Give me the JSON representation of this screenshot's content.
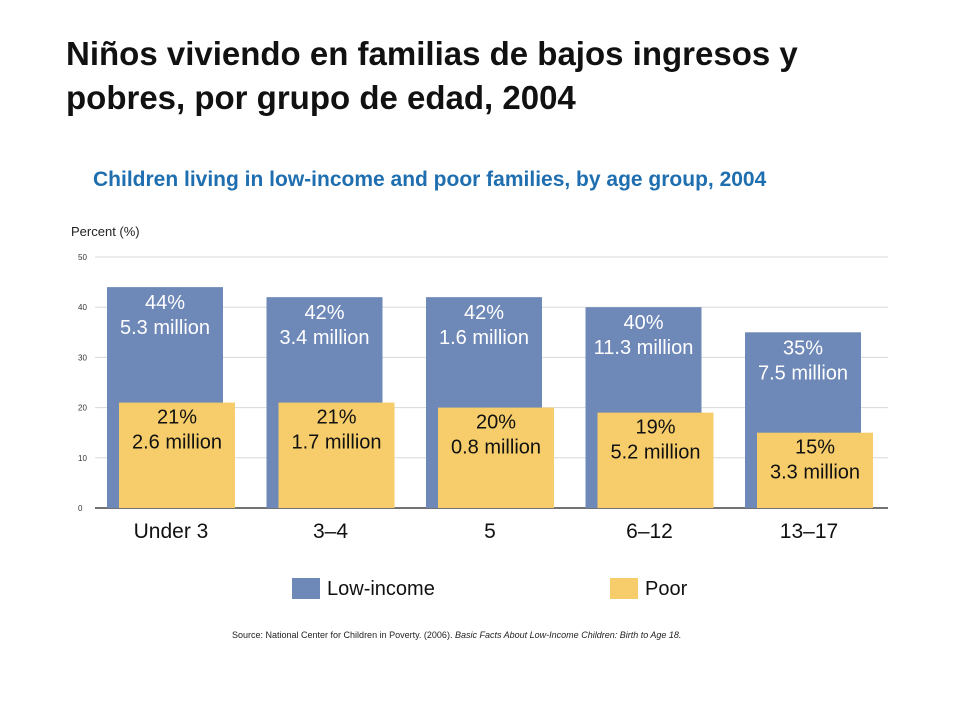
{
  "slide": {
    "title": "Niños viviendo en familias de bajos ingresos y pobres, por grupo de edad, 2004"
  },
  "source": {
    "prefix": "Source: National Center for Children in Poverty. (2006).",
    "italic": "Basic Facts About Low-Income Children: Birth to Age 18."
  },
  "colors": {
    "low_income": "#6e88b8",
    "poor": "#f6cd6a",
    "title": "#1f6fb0",
    "grid": "#d8d8d8"
  },
  "chart_data": {
    "type": "bar",
    "title": "Children living in low-income and poor families, by age group, 2004",
    "ylabel": "Percent (%)",
    "ylim": [
      0,
      50
    ],
    "yticks": [
      0,
      10,
      20,
      30,
      40,
      50
    ],
    "grid": true,
    "legend_position": "bottom",
    "categories": [
      "Under 3",
      "3–4",
      "5",
      "6–12",
      "13–17"
    ],
    "series": [
      {
        "name": "Low-income",
        "values": [
          44,
          42,
          42,
          40,
          35
        ],
        "labels": [
          "44%",
          "42%",
          "42%",
          "40%",
          "35%"
        ],
        "counts": [
          "5.3 million",
          "3.4 million",
          "1.6 million",
          "11.3 million",
          "7.5 million"
        ]
      },
      {
        "name": "Poor",
        "values": [
          21,
          21,
          20,
          19,
          15
        ],
        "labels": [
          "21%",
          "21%",
          "20%",
          "19%",
          "15%"
        ],
        "counts": [
          "2.6 million",
          "1.7 million",
          "0.8 million",
          "5.2 million",
          "3.3 million"
        ]
      }
    ]
  }
}
